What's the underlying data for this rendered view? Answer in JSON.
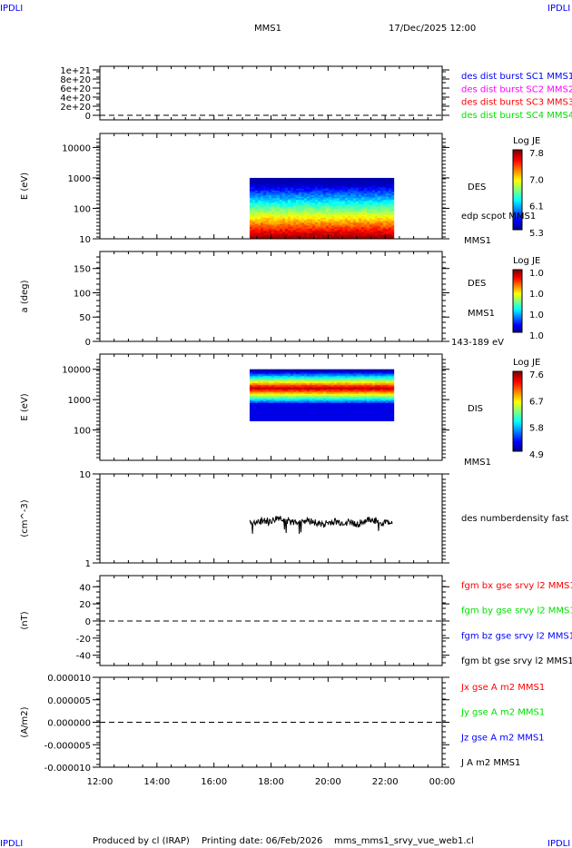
{
  "corner_label": "IPDLI",
  "header": {
    "title": "MMS1",
    "date": "17/Dec/2025 12:00"
  },
  "footer": {
    "produced": "Produced by cl (IRAP)",
    "printed": "Printing date: 06/Feb/2026",
    "file": "mms_mms1_srvy_vue_web1.cl"
  },
  "colors": {
    "red": "#ff0000",
    "green": "#00e000",
    "blue": "#0000ff",
    "magenta": "#ff00ff",
    "black": "#000000"
  },
  "chart_data": [
    {
      "type": "line",
      "ylabel": "",
      "yticks": [
        "1e+21",
        "8e+20",
        "6e+20",
        "4e+20",
        "2e+20",
        "0"
      ],
      "ytick_values": [
        1e+21,
        8e+20,
        6e+20,
        4e+20,
        2e+20,
        0
      ],
      "legend": [
        {
          "label": "des dist burst SC1 MMS1",
          "color": "#0000ff"
        },
        {
          "label": "des dist burst SC2 MMS2",
          "color": "#ff00ff"
        },
        {
          "label": "des dist burst SC3 MMS3",
          "color": "#ff0000"
        },
        {
          "label": "des dist burst SC4 MMS4",
          "color": "#00e000"
        }
      ]
    },
    {
      "type": "heatmap",
      "ylabel": "E (eV)",
      "yscale": "log",
      "yticks": [
        "10000",
        "1000",
        "100",
        "10"
      ],
      "ytick_values": [
        10000,
        1000,
        100,
        10
      ],
      "right_labels": [
        "DES",
        "edp scpot MMS1",
        "MMS1"
      ],
      "colorbar": {
        "title": "Log JE",
        "ticks": [
          "7.8",
          "7.0",
          "6.1",
          "5.3"
        ]
      },
      "data_time_range": [
        "17:15",
        "22:15"
      ],
      "data_energy_range": [
        10,
        950
      ]
    },
    {
      "type": "heatmap",
      "ylabel": "a (deg)",
      "yticks": [
        "150",
        "100",
        "50",
        "0"
      ],
      "ytick_values": [
        150,
        100,
        50,
        0
      ],
      "right_labels": [
        "DES",
        "MMS1",
        "143-189 eV"
      ],
      "colorbar": {
        "title": "Log JE",
        "ticks": [
          "1.0",
          "1.0",
          "1.0",
          "1.0"
        ]
      }
    },
    {
      "type": "heatmap",
      "ylabel": "E (eV)",
      "yscale": "log",
      "yticks": [
        "10000",
        "1000",
        "100"
      ],
      "ytick_values": [
        10000,
        1000,
        100
      ],
      "right_labels": [
        "DIS",
        "MMS1"
      ],
      "colorbar": {
        "title": "Log JE",
        "ticks": [
          "7.6",
          "6.7",
          "5.8",
          "4.9"
        ]
      },
      "data_time_range": [
        "17:15",
        "22:15"
      ],
      "data_energy_range": [
        200,
        9000
      ]
    },
    {
      "type": "line",
      "ylabel": "(cm^-3)",
      "yscale": "log",
      "yticks": [
        "10",
        "1"
      ],
      "ytick_values": [
        10,
        1
      ],
      "legend": [
        {
          "label": "des numberdensity fast MMS1",
          "color": "#000000"
        }
      ],
      "series_x_hours": [
        17.25,
        17.5,
        17.75,
        18.0,
        18.25,
        18.5,
        18.75,
        19.0,
        19.25,
        19.5,
        19.75,
        20.0,
        20.25,
        20.5,
        20.75,
        21.0,
        21.25,
        21.5,
        21.75,
        22.0,
        22.25
      ],
      "series_y": [
        2.9,
        2.8,
        3.0,
        2.9,
        3.2,
        3.1,
        2.8,
        3.0,
        3.0,
        2.9,
        2.7,
        2.8,
        2.9,
        2.8,
        2.9,
        2.7,
        2.9,
        3.1,
        2.9,
        2.8,
        2.9
      ]
    },
    {
      "type": "line",
      "ylabel": "(nT)",
      "yticks": [
        "40",
        "20",
        "0",
        "-20",
        "-40"
      ],
      "ytick_values": [
        40,
        20,
        0,
        -20,
        -40
      ],
      "legend": [
        {
          "label": "fgm bx gse srvy l2 MMS1",
          "color": "#ff0000"
        },
        {
          "label": "fgm by gse srvy l2 MMS1",
          "color": "#00e000"
        },
        {
          "label": "fgm bz gse srvy l2 MMS1",
          "color": "#0000ff"
        },
        {
          "label": "fgm bt gse srvy l2 MMS1",
          "color": "#000000"
        }
      ]
    },
    {
      "type": "line",
      "ylabel": "(A/m2)",
      "yticks": [
        "0.000010",
        "0.000005",
        "0.000000",
        "-0.000005",
        "-0.000010"
      ],
      "ytick_values": [
        1e-05,
        5e-06,
        0,
        -5e-06,
        -1e-05
      ],
      "legend": [
        {
          "label": "Jx gse A m2 MMS1",
          "color": "#ff0000"
        },
        {
          "label": "Jy gse A m2 MMS1",
          "color": "#00e000"
        },
        {
          "label": "Jz gse A m2 MMS1",
          "color": "#0000ff"
        },
        {
          "label": "J A m2 MMS1",
          "color": "#000000"
        }
      ]
    }
  ],
  "xaxis": {
    "ticks": [
      "12:00",
      "14:00",
      "16:00",
      "18:00",
      "20:00",
      "22:00",
      "00:00"
    ],
    "range_hours": [
      12,
      24
    ]
  }
}
